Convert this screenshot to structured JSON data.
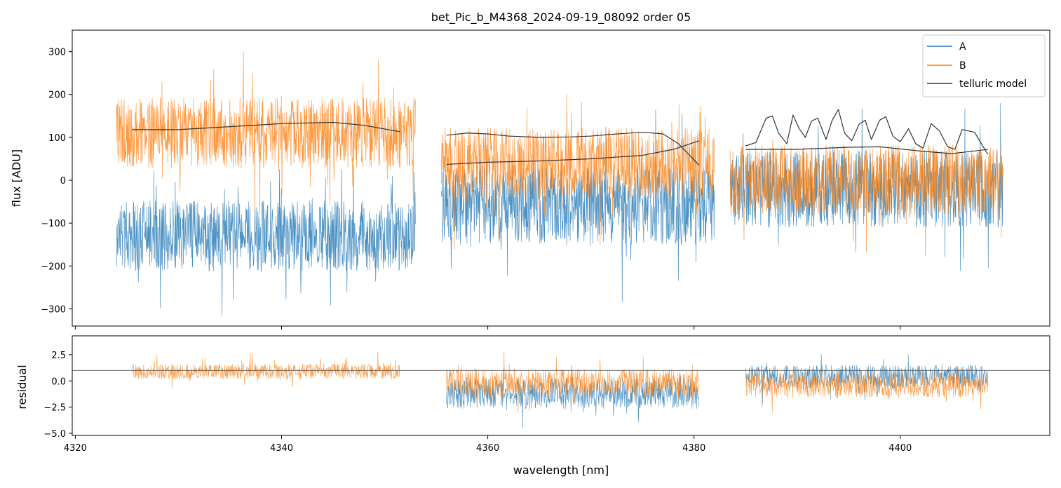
{
  "figure": {
    "title": "bet_Pic_b_M4368_2024-09-19_08092  order 05",
    "xlabel": "wavelength [nm]"
  },
  "colors": {
    "A": "#1f77b4",
    "B": "#ff7f0e",
    "telluric": "#333333",
    "residual_ref": "#555555"
  },
  "chart_data": [
    {
      "type": "line",
      "panel": "flux",
      "ylabel": "flux [ADU]",
      "xlim": [
        4319.7,
        4414.5
      ],
      "ylim": [
        -340,
        350
      ],
      "xticks": [
        4320,
        4340,
        4360,
        4380,
        4400
      ],
      "xtick_labels_visible": false,
      "yticks": [
        -300,
        -200,
        -100,
        0,
        100,
        200,
        300
      ],
      "ytick_labels": [
        "−300",
        "−200",
        "−100",
        "0",
        "100",
        "200",
        "300"
      ],
      "legend": {
        "location": "top-right",
        "entries": [
          "A",
          "B",
          "telluric model"
        ]
      },
      "segments": [
        {
          "x_range": [
            4324.0,
            4353.0
          ],
          "A_mean": -130,
          "A_noise": 110,
          "B_mean": 110,
          "B_noise": 110
        },
        {
          "x_range": [
            4355.5,
            4382.0
          ],
          "A_mean": -60,
          "A_noise": 120,
          "B_mean": 40,
          "B_noise": 110
        },
        {
          "x_range": [
            4383.5,
            4410.0
          ],
          "A_mean": -20,
          "A_noise": 120,
          "B_mean": 0,
          "B_noise": 110
        }
      ],
      "series": [
        {
          "name": "telluric model",
          "segment": 1,
          "x": [
            4325.5,
            4330,
            4335,
            4340,
            4345,
            4348,
            4351.5
          ],
          "y": [
            118,
            118,
            125,
            132,
            135,
            128,
            113
          ]
        },
        {
          "name": "telluric model",
          "segment": 2,
          "x": [
            4356,
            4358,
            4360,
            4362,
            4365,
            4368,
            4370,
            4372,
            4375,
            4377,
            4378.5,
            4380.5
          ],
          "y": [
            105,
            110,
            108,
            103,
            100,
            101,
            103,
            107,
            112,
            108,
            85,
            35
          ]
        },
        {
          "name": "telluric model",
          "segment": 2,
          "x": [
            4356,
            4360,
            4365,
            4370,
            4375,
            4378,
            4380.5
          ],
          "y": [
            37,
            42,
            45,
            50,
            58,
            72,
            92
          ]
        },
        {
          "name": "telluric model",
          "segment": 3,
          "x": [
            4385,
            4386,
            4387,
            4387.6,
            4388.2,
            4389,
            4389.6,
            4390.2,
            4390.8,
            4391.4,
            4392,
            4392.8,
            4393.4,
            4394,
            4394.6,
            4395.3,
            4396,
            4396.6,
            4397.2,
            4398,
            4398.6,
            4399.3,
            4400,
            4400.8,
            4401.5,
            4402.2,
            4403,
            4403.8,
            4404.6,
            4405.3,
            4406,
            4406.6,
            4407.2,
            4408,
            4408.5
          ],
          "y": [
            80,
            88,
            145,
            150,
            110,
            85,
            152,
            120,
            100,
            138,
            145,
            95,
            140,
            165,
            110,
            92,
            130,
            140,
            95,
            140,
            148,
            102,
            90,
            120,
            85,
            75,
            132,
            115,
            78,
            72,
            118,
            115,
            112,
            80,
            60
          ]
        },
        {
          "name": "telluric model",
          "segment": 3,
          "x": [
            4385,
            4390,
            4395,
            4398,
            4402,
            4405,
            4408.5
          ],
          "y": [
            72,
            72,
            77,
            78,
            68,
            62,
            72
          ]
        }
      ]
    },
    {
      "type": "line",
      "panel": "residual",
      "ylabel": "residual",
      "xlim": [
        4319.7,
        4414.5
      ],
      "ylim": [
        -5.2,
        4.3
      ],
      "xticks": [
        4320,
        4340,
        4360,
        4380,
        4400
      ],
      "xtick_labels": [
        "4320",
        "4340",
        "4360",
        "4380",
        "4400"
      ],
      "yticks": [
        -5.0,
        -2.5,
        0.0,
        2.5
      ],
      "ytick_labels": [
        "−5.0",
        "−2.5",
        "0.0",
        "2.5"
      ],
      "reference_line": 1.0,
      "segments": [
        {
          "x_range": [
            4325.5,
            4351.5
          ],
          "B_mean": 0.9,
          "B_noise": 1.0
        },
        {
          "x_range": [
            4356.0,
            4380.5
          ],
          "A_mean": -1.2,
          "A_noise": 2.0,
          "B_mean": -0.2,
          "B_noise": 1.8
        },
        {
          "x_range": [
            4385.0,
            4408.5
          ],
          "A_mean": 0.4,
          "A_noise": 1.5,
          "B_mean": -0.4,
          "B_noise": 1.6
        }
      ]
    }
  ]
}
